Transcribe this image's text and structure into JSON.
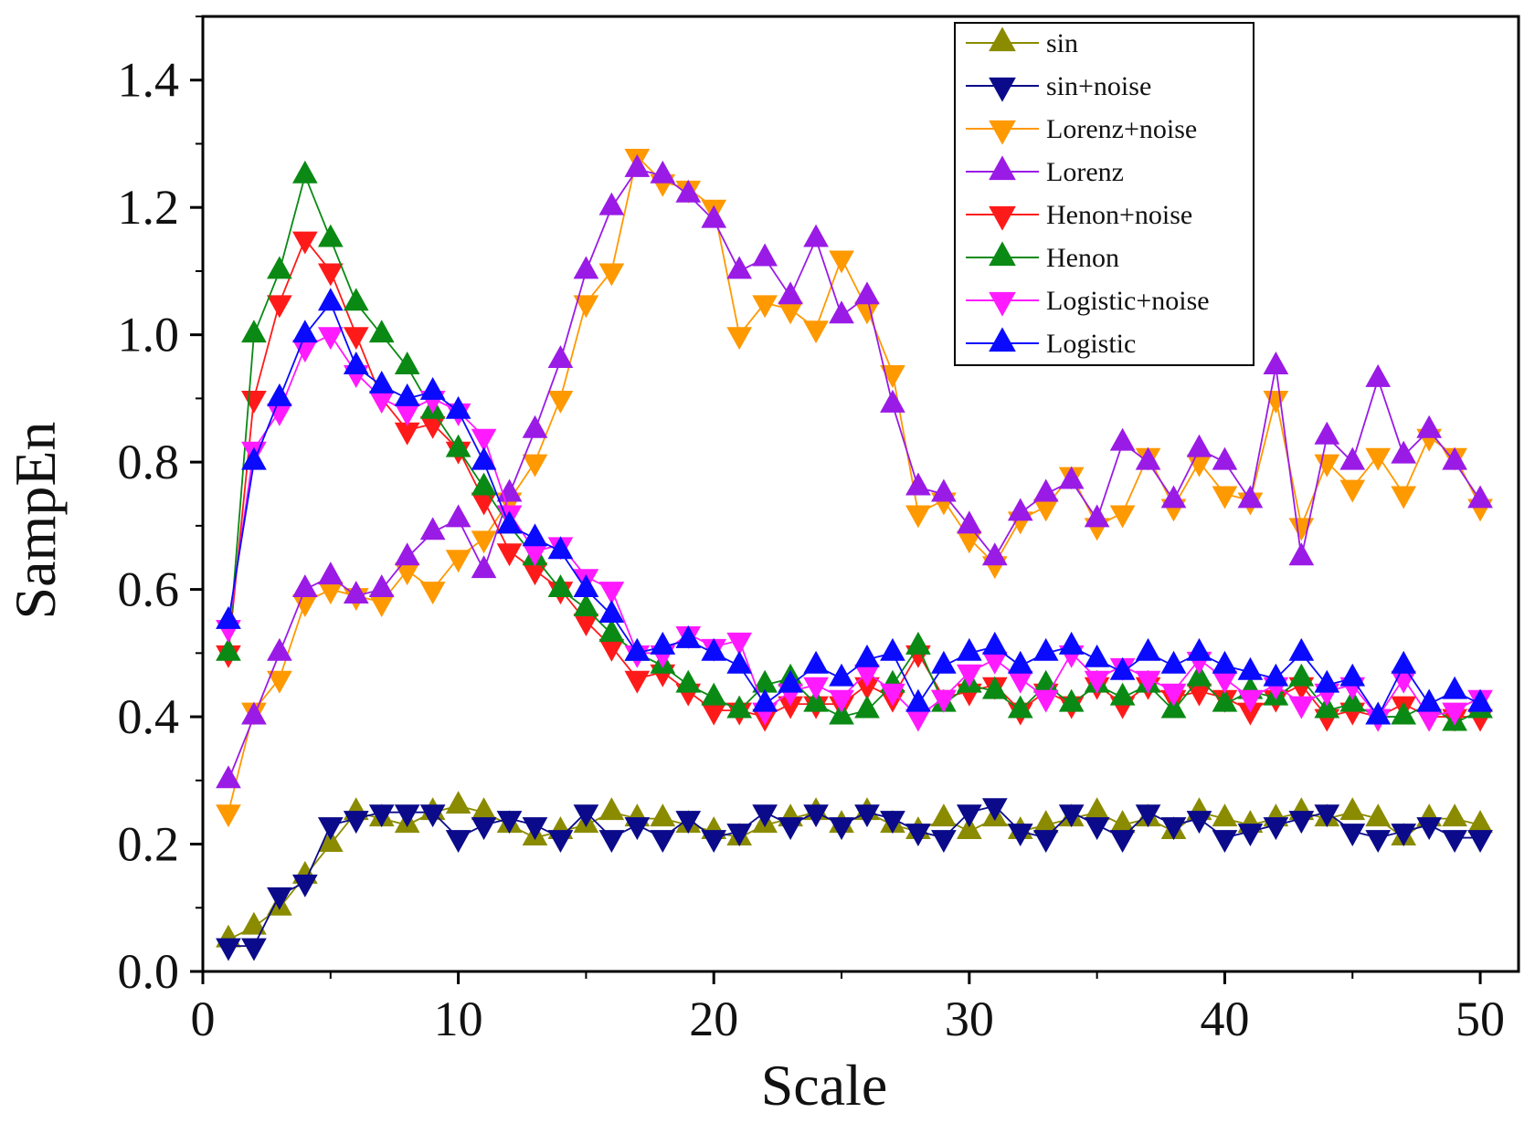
{
  "chart_data": {
    "type": "line",
    "title": "",
    "xlabel": "Scale",
    "ylabel": "SampEn",
    "xlim": [
      0,
      51.5
    ],
    "ylim": [
      0,
      1.5
    ],
    "xticks": [
      0,
      10,
      20,
      30,
      40,
      50
    ],
    "yticks": [
      0.0,
      0.2,
      0.4,
      0.6,
      0.8,
      1.0,
      1.2,
      1.4
    ],
    "xtick_labels": [
      "0",
      "10",
      "20",
      "30",
      "40",
      "50"
    ],
    "ytick_labels": [
      "0.0",
      "0.2",
      "0.4",
      "0.6",
      "0.8",
      "1.0",
      "1.2",
      "1.4"
    ],
    "legend_position": "top-right",
    "x": [
      1,
      2,
      3,
      4,
      5,
      6,
      7,
      8,
      9,
      10,
      11,
      12,
      13,
      14,
      15,
      16,
      17,
      18,
      19,
      20,
      21,
      22,
      23,
      24,
      25,
      26,
      27,
      28,
      29,
      30,
      31,
      32,
      33,
      34,
      35,
      36,
      37,
      38,
      39,
      40,
      41,
      42,
      43,
      44,
      45,
      46,
      47,
      48,
      49,
      50
    ],
    "series": [
      {
        "name": "sin",
        "color": "#8b8b00",
        "marker": "up",
        "values": [
          0.05,
          0.07,
          0.1,
          0.15,
          0.2,
          0.25,
          0.24,
          0.23,
          0.25,
          0.26,
          0.25,
          0.23,
          0.21,
          0.22,
          0.23,
          0.25,
          0.24,
          0.24,
          0.23,
          0.22,
          0.21,
          0.23,
          0.24,
          0.25,
          0.23,
          0.25,
          0.23,
          0.22,
          0.24,
          0.22,
          0.24,
          0.22,
          0.23,
          0.24,
          0.25,
          0.23,
          0.24,
          0.22,
          0.25,
          0.24,
          0.23,
          0.24,
          0.25,
          0.24,
          0.25,
          0.24,
          0.21,
          0.24,
          0.24,
          0.23
        ]
      },
      {
        "name": "sin+noise",
        "color": "#0a0a8a",
        "marker": "down",
        "values": [
          0.04,
          0.04,
          0.12,
          0.14,
          0.23,
          0.24,
          0.25,
          0.25,
          0.25,
          0.21,
          0.23,
          0.24,
          0.23,
          0.21,
          0.25,
          0.21,
          0.23,
          0.21,
          0.24,
          0.21,
          0.22,
          0.25,
          0.23,
          0.25,
          0.23,
          0.25,
          0.24,
          0.22,
          0.21,
          0.25,
          0.26,
          0.22,
          0.21,
          0.25,
          0.23,
          0.21,
          0.25,
          0.23,
          0.24,
          0.21,
          0.22,
          0.23,
          0.24,
          0.25,
          0.22,
          0.21,
          0.22,
          0.23,
          0.21,
          0.21
        ]
      },
      {
        "name": "Lorenz+noise",
        "color": "#ff9900",
        "marker": "down",
        "values": [
          0.25,
          0.41,
          0.46,
          0.58,
          0.6,
          0.59,
          0.58,
          0.63,
          0.6,
          0.65,
          0.68,
          0.74,
          0.8,
          0.9,
          1.05,
          1.1,
          1.28,
          1.24,
          1.23,
          1.2,
          1.0,
          1.05,
          1.04,
          1.01,
          1.12,
          1.04,
          0.94,
          0.72,
          0.74,
          0.68,
          0.64,
          0.71,
          0.73,
          0.78,
          0.7,
          0.72,
          0.81,
          0.73,
          0.8,
          0.75,
          0.74,
          0.9,
          0.7,
          0.8,
          0.76,
          0.81,
          0.75,
          0.84,
          0.81,
          0.73
        ]
      },
      {
        "name": "Lorenz",
        "color": "#9a1be6",
        "marker": "up",
        "values": [
          0.3,
          0.4,
          0.5,
          0.6,
          0.62,
          0.59,
          0.6,
          0.65,
          0.69,
          0.71,
          0.63,
          0.75,
          0.85,
          0.96,
          1.1,
          1.2,
          1.26,
          1.25,
          1.22,
          1.18,
          1.1,
          1.12,
          1.06,
          1.15,
          1.03,
          1.06,
          0.89,
          0.76,
          0.75,
          0.7,
          0.65,
          0.72,
          0.75,
          0.77,
          0.71,
          0.83,
          0.8,
          0.74,
          0.82,
          0.8,
          0.74,
          0.95,
          0.65,
          0.84,
          0.8,
          0.93,
          0.81,
          0.85,
          0.8,
          0.74
        ]
      },
      {
        "name": "Henon+noise",
        "color": "#ff1a1a",
        "marker": "down",
        "values": [
          0.5,
          0.9,
          1.05,
          1.15,
          1.1,
          1.0,
          0.9,
          0.85,
          0.86,
          0.82,
          0.74,
          0.66,
          0.63,
          0.6,
          0.55,
          0.51,
          0.46,
          0.47,
          0.44,
          0.41,
          0.41,
          0.4,
          0.42,
          0.42,
          0.42,
          0.45,
          0.43,
          0.5,
          0.43,
          0.44,
          0.45,
          0.41,
          0.44,
          0.42,
          0.45,
          0.42,
          0.45,
          0.43,
          0.44,
          0.43,
          0.41,
          0.43,
          0.45,
          0.4,
          0.41,
          0.4,
          0.42,
          0.4,
          0.4,
          0.4
        ]
      },
      {
        "name": "Henon",
        "color": "#0a8a14",
        "marker": "up",
        "values": [
          0.5,
          1.0,
          1.1,
          1.25,
          1.15,
          1.05,
          1.0,
          0.95,
          0.88,
          0.82,
          0.76,
          0.7,
          0.65,
          0.6,
          0.57,
          0.53,
          0.5,
          0.48,
          0.45,
          0.43,
          0.41,
          0.45,
          0.46,
          0.42,
          0.4,
          0.41,
          0.45,
          0.51,
          0.42,
          0.45,
          0.44,
          0.41,
          0.45,
          0.42,
          0.45,
          0.43,
          0.45,
          0.41,
          0.46,
          0.42,
          0.44,
          0.43,
          0.46,
          0.41,
          0.42,
          0.4,
          0.4,
          0.42,
          0.39,
          0.41
        ]
      },
      {
        "name": "Logistic+noise",
        "color": "#ff1aff",
        "marker": "down",
        "values": [
          0.54,
          0.82,
          0.88,
          0.98,
          1.0,
          0.94,
          0.9,
          0.88,
          0.9,
          0.88,
          0.84,
          0.72,
          0.66,
          0.67,
          0.62,
          0.6,
          0.5,
          0.5,
          0.53,
          0.51,
          0.52,
          0.41,
          0.44,
          0.45,
          0.43,
          0.47,
          0.44,
          0.4,
          0.43,
          0.47,
          0.49,
          0.46,
          0.43,
          0.5,
          0.46,
          0.48,
          0.46,
          0.44,
          0.49,
          0.46,
          0.43,
          0.45,
          0.42,
          0.44,
          0.45,
          0.4,
          0.46,
          0.4,
          0.41,
          0.43
        ]
      },
      {
        "name": "Logistic",
        "color": "#0a0aff",
        "marker": "up",
        "values": [
          0.55,
          0.8,
          0.9,
          1.0,
          1.05,
          0.95,
          0.92,
          0.9,
          0.91,
          0.88,
          0.8,
          0.7,
          0.68,
          0.66,
          0.6,
          0.56,
          0.5,
          0.51,
          0.52,
          0.5,
          0.48,
          0.42,
          0.45,
          0.48,
          0.46,
          0.49,
          0.5,
          0.42,
          0.48,
          0.5,
          0.51,
          0.48,
          0.5,
          0.51,
          0.49,
          0.47,
          0.5,
          0.48,
          0.5,
          0.48,
          0.47,
          0.46,
          0.5,
          0.45,
          0.46,
          0.4,
          0.48,
          0.42,
          0.44,
          0.42
        ]
      }
    ]
  }
}
